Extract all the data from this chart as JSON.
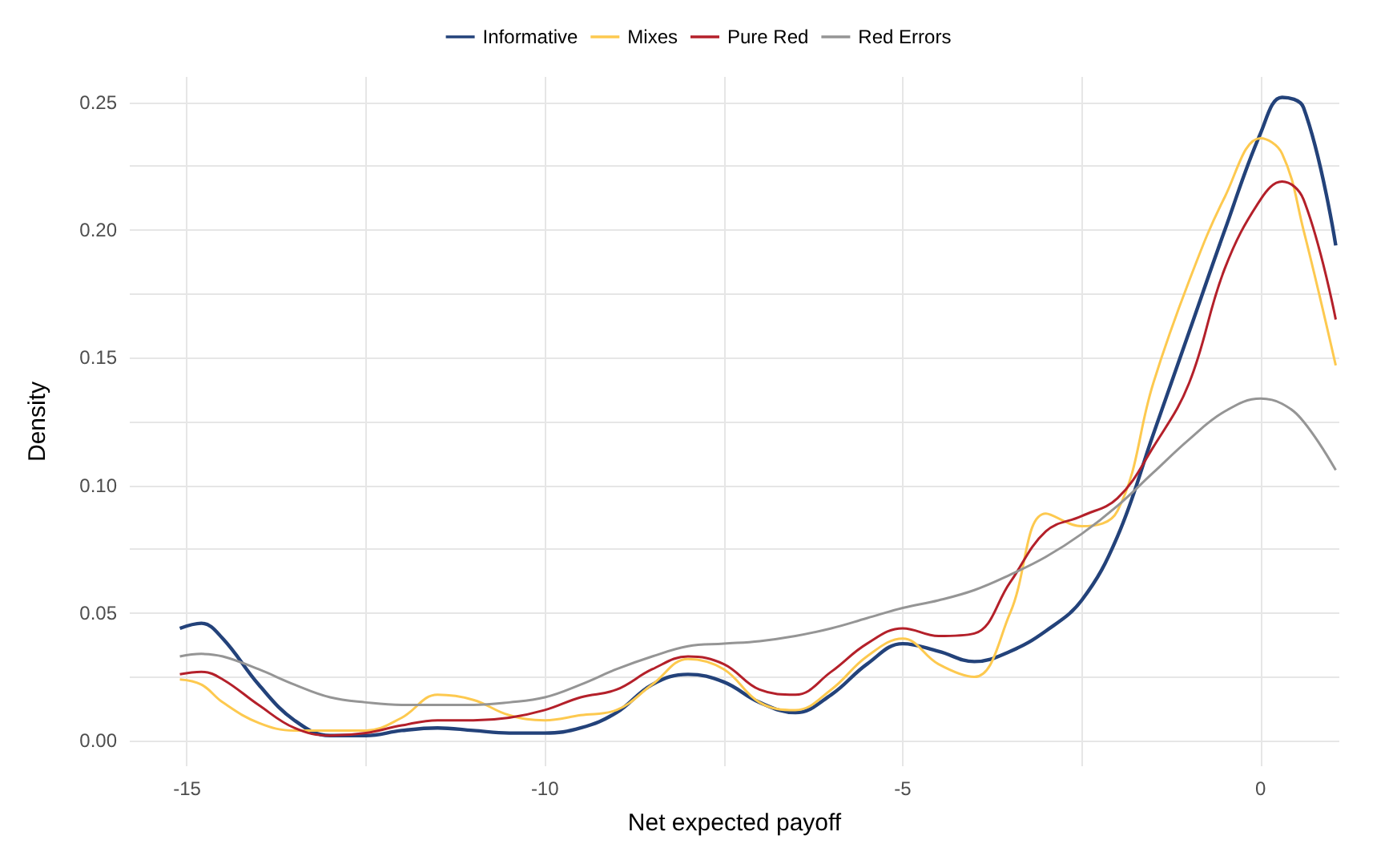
{
  "chart_data": {
    "type": "line",
    "xlabel": "Net expected payoff",
    "ylabel": "Density",
    "x": [
      -15.1,
      -14.8,
      -14.5,
      -14,
      -13.5,
      -13,
      -12.5,
      -12,
      -11.5,
      -11,
      -10.5,
      -10,
      -9.5,
      -9,
      -8.5,
      -8,
      -7.5,
      -7,
      -6.5,
      -6,
      -5.5,
      -5,
      -4.5,
      -4,
      -3.5,
      -3,
      -2.5,
      -2,
      -1.5,
      -1,
      -0.5,
      0,
      0.3,
      0.6,
      1.05
    ],
    "series": [
      {
        "name": "Informative",
        "color": "#23427a",
        "values": [
          0.044,
          0.046,
          0.04,
          0.022,
          0.008,
          0.002,
          0.002,
          0.004,
          0.005,
          0.004,
          0.003,
          0.003,
          0.005,
          0.011,
          0.022,
          0.026,
          0.023,
          0.015,
          0.011,
          0.018,
          0.03,
          0.038,
          0.035,
          0.031,
          0.035,
          0.043,
          0.055,
          0.08,
          0.12,
          0.16,
          0.2,
          0.238,
          0.252,
          0.248,
          0.194
        ]
      },
      {
        "name": "Mixes",
        "color": "#fdc94f",
        "values": [
          0.024,
          0.022,
          0.015,
          0.007,
          0.004,
          0.004,
          0.004,
          0.009,
          0.018,
          0.016,
          0.01,
          0.008,
          0.01,
          0.012,
          0.022,
          0.032,
          0.028,
          0.015,
          0.012,
          0.02,
          0.033,
          0.04,
          0.03,
          0.025,
          0.05,
          0.089,
          0.084,
          0.09,
          0.14,
          0.18,
          0.213,
          0.236,
          0.23,
          0.2,
          0.147
        ]
      },
      {
        "name": "Pure Red",
        "color": "#b4202a",
        "values": [
          0.026,
          0.027,
          0.024,
          0.014,
          0.005,
          0.002,
          0.003,
          0.006,
          0.008,
          0.008,
          0.009,
          0.012,
          0.017,
          0.02,
          0.028,
          0.033,
          0.03,
          0.02,
          0.018,
          0.027,
          0.038,
          0.044,
          0.041,
          0.042,
          0.062,
          0.082,
          0.088,
          0.095,
          0.115,
          0.14,
          0.185,
          0.212,
          0.219,
          0.212,
          0.165
        ]
      },
      {
        "name": "Red Errors",
        "color": "#959595",
        "values": [
          0.033,
          0.034,
          0.033,
          0.028,
          0.022,
          0.017,
          0.015,
          0.014,
          0.014,
          0.014,
          0.015,
          0.017,
          0.022,
          0.028,
          0.033,
          0.037,
          0.038,
          0.039,
          0.041,
          0.044,
          0.048,
          0.052,
          0.055,
          0.059,
          0.065,
          0.072,
          0.081,
          0.092,
          0.105,
          0.118,
          0.129,
          0.134,
          0.132,
          0.125,
          0.106
        ]
      }
    ],
    "xlim": [
      -15.8,
      1.1
    ],
    "ylim": [
      -0.01,
      0.26
    ],
    "xticks": [
      -15,
      {
        "value": -12.5,
        "label": null
      },
      -10,
      {
        "value": -7.5,
        "label": null
      },
      -5,
      {
        "value": -2.5,
        "label": null
      },
      0
    ],
    "yticks": [
      {
        "value": 0,
        "label": "0.00"
      },
      {
        "value": 0.025,
        "label": null
      },
      {
        "value": 0.05,
        "label": "0.05"
      },
      {
        "value": 0.075,
        "label": null
      },
      {
        "value": 0.1,
        "label": "0.10"
      },
      {
        "value": 0.125,
        "label": null
      },
      {
        "value": 0.15,
        "label": "0.15"
      },
      {
        "value": 0.175,
        "label": null
      },
      {
        "value": 0.2,
        "label": "0.20"
      },
      {
        "value": 0.225,
        "label": null
      },
      {
        "value": 0.25,
        "label": "0.25"
      }
    ],
    "grid": true,
    "legend": "top",
    "line_style": "solid"
  }
}
